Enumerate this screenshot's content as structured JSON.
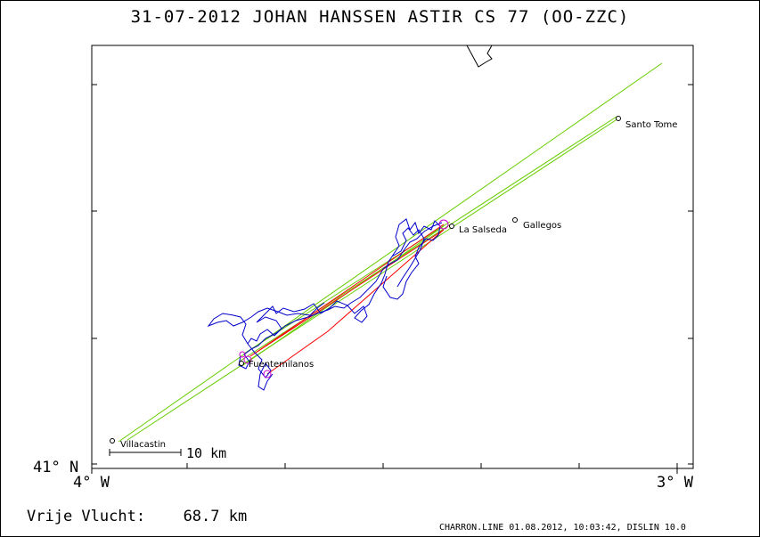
{
  "title": "31-07-2012    JOHAN HANSSEN    ASTIR CS 77 (OO-ZZC)",
  "axes": {
    "lat_label": "41° N",
    "lon_left_label": "4° W",
    "lon_right_label": "3° W"
  },
  "scale_bar": {
    "label": "10 km"
  },
  "places": [
    {
      "name": "Santo Tome"
    },
    {
      "name": "La Salseda"
    },
    {
      "name": "Gallegos"
    },
    {
      "name": "Fuentemilanos"
    },
    {
      "name": "Villacastin"
    }
  ],
  "footer": {
    "distance_label": "Vrije Vlucht:",
    "distance_value": "68.7 km",
    "software": "CHARRON.LINE 01.08.2012, 10:03:42, DISLIN 10.0"
  },
  "colors": {
    "track": "#0000cc",
    "task_lines": "#66cc00",
    "optimized_route": "#ff0000",
    "turnpoints": "#cc00cc"
  }
}
